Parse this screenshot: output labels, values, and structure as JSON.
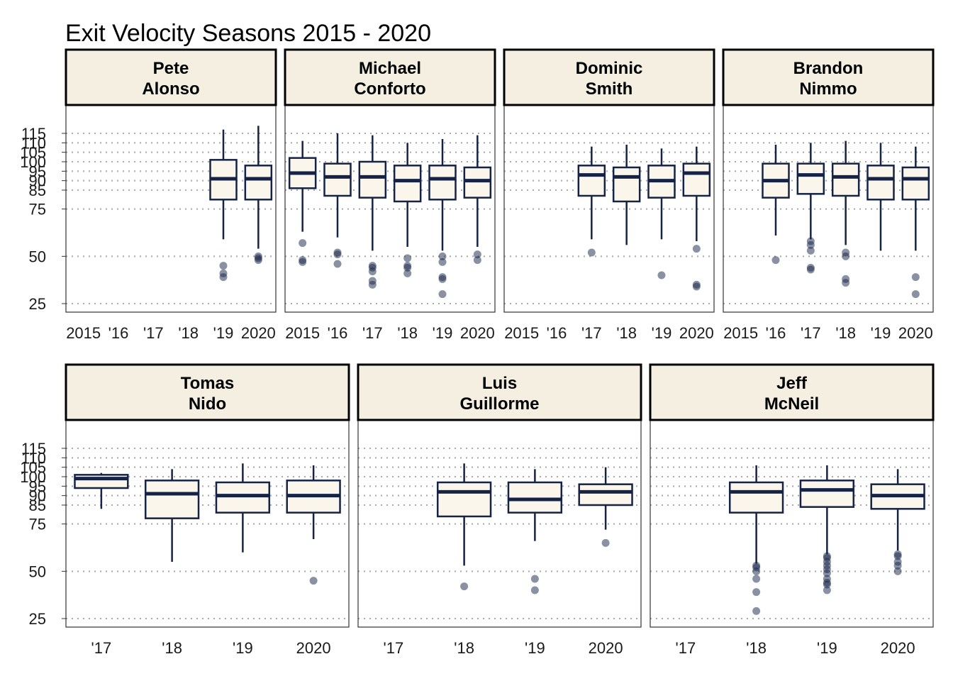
{
  "chart_data": {
    "type": "boxplot",
    "title": "Exit Velocity Seasons 2015 - 2020",
    "y_ticks": [
      25,
      50,
      75,
      85,
      90,
      95,
      100,
      105,
      110,
      115
    ],
    "ylim": [
      20,
      130
    ],
    "grid": "horizontal dotted",
    "colors": {
      "box_fill": "#fbf6ec",
      "box_line": "#152347",
      "strip_fill": "#f5efe1",
      "grid": "#a8a8a8",
      "outlier": "#152347"
    },
    "rows": [
      {
        "categories": [
          "2015",
          "'16",
          "'17",
          "'18",
          "'19",
          "2020"
        ],
        "panels": [
          {
            "label": [
              "Pete",
              "Alonso"
            ],
            "boxes": [
              {
                "cat": "'19",
                "whisker_low": 59,
                "q1": 80,
                "median": 91,
                "q3": 101,
                "whisker_high": 117,
                "outliers": [
                  45,
                  41,
                  39
                ]
              },
              {
                "cat": "2020",
                "whisker_low": 54,
                "q1": 80,
                "median": 91,
                "q3": 98,
                "whisker_high": 119,
                "outliers": [
                  50,
                  49,
                  48
                ]
              }
            ]
          },
          {
            "label": [
              "Michael",
              "Conforto"
            ],
            "boxes": [
              {
                "cat": "2015",
                "whisker_low": 63,
                "q1": 86,
                "median": 94,
                "q3": 102,
                "whisker_high": 111,
                "outliers": [
                  57,
                  48,
                  47
                ]
              },
              {
                "cat": "'16",
                "whisker_low": 60,
                "q1": 82,
                "median": 92,
                "q3": 99,
                "whisker_high": 115,
                "outliers": [
                  52,
                  51,
                  46
                ]
              },
              {
                "cat": "'17",
                "whisker_low": 53,
                "q1": 81,
                "median": 92,
                "q3": 100,
                "whisker_high": 114,
                "outliers": [
                  45,
                  44,
                  42,
                  37,
                  35
                ]
              },
              {
                "cat": "'18",
                "whisker_low": 55,
                "q1": 79,
                "median": 90,
                "q3": 98,
                "whisker_high": 110,
                "outliers": [
                  49,
                  45,
                  44,
                  41
                ]
              },
              {
                "cat": "'19",
                "whisker_low": 53,
                "q1": 80,
                "median": 91,
                "q3": 98,
                "whisker_high": 112,
                "outliers": [
                  50,
                  47,
                  39,
                  38,
                  30
                ]
              },
              {
                "cat": "2020",
                "whisker_low": 55,
                "q1": 81,
                "median": 90,
                "q3": 97,
                "whisker_high": 114,
                "outliers": [
                  51,
                  48
                ]
              }
            ]
          },
          {
            "label": [
              "Dominic",
              "Smith"
            ],
            "boxes": [
              {
                "cat": "'17",
                "whisker_low": 59,
                "q1": 82,
                "median": 93,
                "q3": 98,
                "whisker_high": 108,
                "outliers": [
                  52
                ]
              },
              {
                "cat": "'18",
                "whisker_low": 56,
                "q1": 79,
                "median": 92,
                "q3": 97,
                "whisker_high": 109,
                "outliers": []
              },
              {
                "cat": "'19",
                "whisker_low": 59,
                "q1": 81,
                "median": 90,
                "q3": 98,
                "whisker_high": 107,
                "outliers": [
                  40
                ]
              },
              {
                "cat": "2020",
                "whisker_low": 58,
                "q1": 82,
                "median": 94,
                "q3": 99,
                "whisker_high": 108,
                "outliers": [
                  54,
                  35,
                  34
                ]
              }
            ]
          },
          {
            "label": [
              "Brandon",
              "Nimmo"
            ],
            "boxes": [
              {
                "cat": "'16",
                "whisker_low": 61,
                "q1": 81,
                "median": 90,
                "q3": 99,
                "whisker_high": 109,
                "outliers": [
                  48
                ]
              },
              {
                "cat": "'17",
                "whisker_low": 59,
                "q1": 83,
                "median": 93,
                "q3": 99,
                "whisker_high": 110,
                "outliers": [
                  58,
                  56,
                  53,
                  44,
                  43
                ]
              },
              {
                "cat": "'18",
                "whisker_low": 56,
                "q1": 82,
                "median": 92,
                "q3": 99,
                "whisker_high": 111,
                "outliers": [
                  52,
                  50,
                  38,
                  36
                ]
              },
              {
                "cat": "'19",
                "whisker_low": 53,
                "q1": 80,
                "median": 91,
                "q3": 98,
                "whisker_high": 110,
                "outliers": []
              },
              {
                "cat": "2020",
                "whisker_low": 53,
                "q1": 80,
                "median": 91,
                "q3": 97,
                "whisker_high": 108,
                "outliers": [
                  39,
                  30
                ]
              }
            ]
          }
        ]
      },
      {
        "categories": [
          "'17",
          "'18",
          "'19",
          "2020"
        ],
        "panels": [
          {
            "label": [
              "Tomas",
              "Nido"
            ],
            "boxes": [
              {
                "cat": "'17",
                "whisker_low": 83,
                "q1": 94,
                "median": 99,
                "q3": 101,
                "whisker_high": 102,
                "outliers": []
              },
              {
                "cat": "'18",
                "whisker_low": 55,
                "q1": 78,
                "median": 91,
                "q3": 98,
                "whisker_high": 104,
                "outliers": []
              },
              {
                "cat": "'19",
                "whisker_low": 60,
                "q1": 81,
                "median": 90,
                "q3": 97,
                "whisker_high": 107,
                "outliers": []
              },
              {
                "cat": "2020",
                "whisker_low": 67,
                "q1": 81,
                "median": 90,
                "q3": 98,
                "whisker_high": 106,
                "outliers": [
                  45
                ]
              }
            ]
          },
          {
            "label": [
              "Luis",
              "Guillorme"
            ],
            "boxes": [
              {
                "cat": "'18",
                "whisker_low": 53,
                "q1": 79,
                "median": 92,
                "q3": 97,
                "whisker_high": 107,
                "outliers": [
                  42
                ]
              },
              {
                "cat": "'19",
                "whisker_low": 66,
                "q1": 81,
                "median": 88,
                "q3": 97,
                "whisker_high": 104,
                "outliers": [
                  46,
                  40
                ]
              },
              {
                "cat": "2020",
                "whisker_low": 72,
                "q1": 85,
                "median": 92,
                "q3": 96,
                "whisker_high": 105,
                "outliers": [
                  65
                ]
              }
            ]
          },
          {
            "label": [
              "Jeff",
              "McNeil"
            ],
            "boxes": [
              {
                "cat": "'18",
                "whisker_low": 54,
                "q1": 81,
                "median": 92,
                "q3": 97,
                "whisker_high": 106,
                "outliers": [
                  53,
                  52,
                  50,
                  46,
                  39,
                  29
                ]
              },
              {
                "cat": "'19",
                "whisker_low": 59,
                "q1": 84,
                "median": 93,
                "q3": 98,
                "whisker_high": 106,
                "outliers": [
                  58,
                  57,
                  55,
                  53,
                  51,
                  49,
                  46,
                  44,
                  43,
                  40
                ]
              },
              {
                "cat": "2020",
                "whisker_low": 61,
                "q1": 83,
                "median": 90,
                "q3": 96,
                "whisker_high": 104,
                "outliers": [
                  59,
                  58,
                  55,
                  53,
                  50
                ]
              }
            ]
          }
        ]
      }
    ]
  }
}
